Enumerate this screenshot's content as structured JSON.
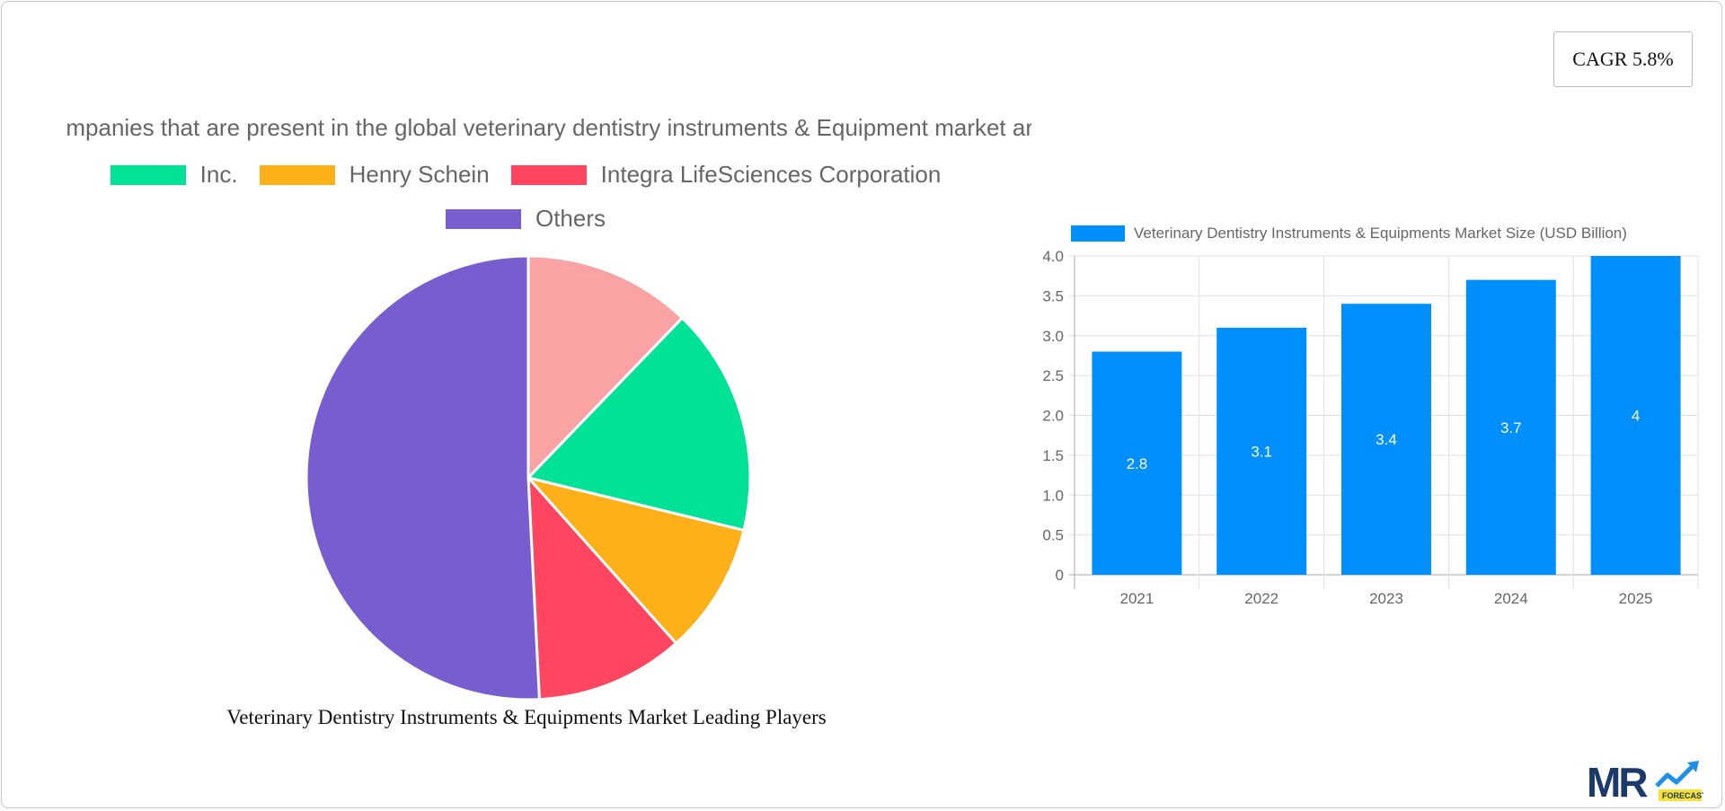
{
  "cagr": {
    "label": "CAGR 5.8%"
  },
  "pie_chart": {
    "title_visible": "mpanies that are present in the global veterinary dentistry instruments & Equipment market ar",
    "legend": [
      {
        "label": "Inc.",
        "color": "#00e396"
      },
      {
        "label": "Henry Schein",
        "color": "#feb019"
      },
      {
        "label": "Integra LifeSciences Corporation",
        "color": "#ff4560"
      },
      {
        "label": "Others",
        "color": "#775dd0"
      }
    ],
    "caption": "Veterinary Dentistry Instruments & Equipments Market Leading Players"
  },
  "bar_chart": {
    "legend_label": "Veterinary Dentistry Instruments & Equipments Market Size (USD Billion)",
    "color": "#008ffb",
    "y_ticks": [
      "0",
      "0.5",
      "1.0",
      "1.5",
      "2.0",
      "2.5",
      "3.0",
      "3.5",
      "4.0"
    ]
  },
  "logo": {
    "main": "MR",
    "sub": "FORECAST"
  },
  "chart_data": [
    {
      "type": "pie",
      "title": "...mpanies that are present in the global veterinary dentistry instruments & Equipment market ar...",
      "caption": "Veterinary Dentistry Instruments & Equipments Market Leading Players",
      "categories": [
        "(unlabeled)",
        "Inc.",
        "Henry Schein",
        "Integra LifeSciences Corporation",
        "Others"
      ],
      "values": [
        12.2,
        16.6,
        9.6,
        10.8,
        50.8
      ],
      "colors": [
        "#f9a3a4",
        "#00e396",
        "#feb019",
        "#ff4560",
        "#775dd0"
      ],
      "legend_position": "top",
      "units": "approx. % share (estimated from slice angles)"
    },
    {
      "type": "bar",
      "title": "",
      "categories": [
        "2021",
        "2022",
        "2023",
        "2024",
        "2025"
      ],
      "series": [
        {
          "name": "Veterinary Dentistry Instruments & Equipments Market Size (USD Billion)",
          "values": [
            2.8,
            3.1,
            3.4,
            3.7,
            4
          ]
        }
      ],
      "xlabel": "",
      "ylabel": "",
      "ylim": [
        0,
        4.0
      ],
      "y_ticks": [
        0,
        0.5,
        1.0,
        1.5,
        2.0,
        2.5,
        3.0,
        3.5,
        4.0
      ],
      "grid": true,
      "data_labels": true,
      "legend_position": "top"
    }
  ]
}
